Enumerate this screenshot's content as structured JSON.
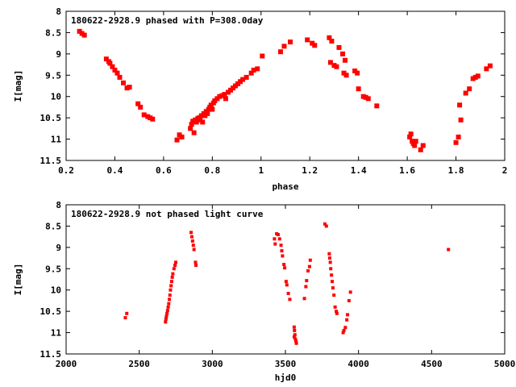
{
  "chart_data": [
    {
      "type": "scatter",
      "title": "180622-2928.9 phased with P=308.0day",
      "xlabel": "phase",
      "ylabel": "I[mag]",
      "xlim": [
        0.2,
        2.0
      ],
      "ylim": [
        8,
        11.5
      ],
      "y_inverted": true,
      "grid": false,
      "marker_color": "#ff0000",
      "x_ticks": [
        {
          "value": 0.2,
          "label": "0.2"
        },
        {
          "value": 0.4,
          "label": "0.4"
        },
        {
          "value": 0.6,
          "label": "0.6"
        },
        {
          "value": 0.8,
          "label": "0.8"
        },
        {
          "value": 1.0,
          "label": "1"
        },
        {
          "value": 1.2,
          "label": "1.2"
        },
        {
          "value": 1.4,
          "label": "1.4"
        },
        {
          "value": 1.6,
          "label": "1.6"
        },
        {
          "value": 1.8,
          "label": "1.8"
        },
        {
          "value": 2.0,
          "label": "2"
        }
      ],
      "y_ticks": [
        {
          "value": 8,
          "label": "8"
        },
        {
          "value": 8.5,
          "label": "8.5"
        },
        {
          "value": 9,
          "label": "9"
        },
        {
          "value": 9.5,
          "label": "9.5"
        },
        {
          "value": 10,
          "label": "10"
        },
        {
          "value": 10.5,
          "label": "10.5"
        },
        {
          "value": 11,
          "label": "11"
        },
        {
          "value": 11.5,
          "label": "11.5"
        }
      ],
      "series": [
        {
          "points": [
            [
              0.255,
              8.47
            ],
            [
              0.265,
              8.52
            ],
            [
              0.275,
              8.56
            ],
            [
              0.365,
              9.12
            ],
            [
              0.375,
              9.18
            ],
            [
              0.38,
              9.22
            ],
            [
              0.39,
              9.3
            ],
            [
              0.4,
              9.38
            ],
            [
              0.41,
              9.45
            ],
            [
              0.42,
              9.55
            ],
            [
              0.435,
              9.68
            ],
            [
              0.45,
              9.8
            ],
            [
              0.46,
              9.78
            ],
            [
              0.495,
              10.17
            ],
            [
              0.505,
              10.25
            ],
            [
              0.52,
              10.43
            ],
            [
              0.535,
              10.47
            ],
            [
              0.545,
              10.5
            ],
            [
              0.555,
              10.53
            ],
            [
              0.655,
              11.02
            ],
            [
              0.665,
              10.9
            ],
            [
              0.675,
              10.95
            ],
            [
              0.71,
              10.75
            ],
            [
              0.715,
              10.65
            ],
            [
              0.72,
              10.58
            ],
            [
              0.725,
              10.85
            ],
            [
              0.73,
              10.55
            ],
            [
              0.735,
              10.6
            ],
            [
              0.74,
              10.52
            ],
            [
              0.745,
              10.5
            ],
            [
              0.75,
              10.55
            ],
            [
              0.755,
              10.45
            ],
            [
              0.76,
              10.6
            ],
            [
              0.765,
              10.4
            ],
            [
              0.77,
              10.45
            ],
            [
              0.775,
              10.35
            ],
            [
              0.78,
              10.4
            ],
            [
              0.785,
              10.3
            ],
            [
              0.79,
              10.25
            ],
            [
              0.795,
              10.2
            ],
            [
              0.8,
              10.3
            ],
            [
              0.805,
              10.15
            ],
            [
              0.81,
              10.1
            ],
            [
              0.82,
              10.05
            ],
            [
              0.83,
              10.0
            ],
            [
              0.84,
              9.98
            ],
            [
              0.85,
              9.95
            ],
            [
              0.855,
              10.05
            ],
            [
              0.865,
              9.9
            ],
            [
              0.875,
              9.85
            ],
            [
              0.885,
              9.8
            ],
            [
              0.895,
              9.75
            ],
            [
              0.905,
              9.7
            ],
            [
              0.915,
              9.65
            ],
            [
              0.925,
              9.6
            ],
            [
              0.94,
              9.55
            ],
            [
              0.96,
              9.45
            ],
            [
              0.97,
              9.38
            ],
            [
              0.985,
              9.35
            ],
            [
              1.005,
              9.05
            ],
            [
              1.08,
              8.95
            ],
            [
              1.095,
              8.82
            ],
            [
              1.12,
              8.72
            ],
            [
              1.19,
              8.67
            ],
            [
              1.21,
              8.75
            ],
            [
              1.22,
              8.8
            ],
            [
              1.28,
              8.62
            ],
            [
              1.29,
              8.7
            ],
            [
              1.285,
              9.2
            ],
            [
              1.3,
              9.27
            ],
            [
              1.31,
              9.3
            ],
            [
              1.32,
              8.85
            ],
            [
              1.335,
              9.0
            ],
            [
              1.34,
              9.45
            ],
            [
              1.35,
              9.5
            ],
            [
              1.345,
              9.15
            ],
            [
              1.385,
              9.4
            ],
            [
              1.395,
              9.45
            ],
            [
              1.4,
              9.82
            ],
            [
              1.42,
              10.0
            ],
            [
              1.43,
              10.02
            ],
            [
              1.44,
              10.05
            ],
            [
              1.475,
              10.22
            ],
            [
              1.61,
              10.95
            ],
            [
              1.615,
              10.88
            ],
            [
              1.62,
              11.05
            ],
            [
              1.625,
              11.1
            ],
            [
              1.63,
              11.15
            ],
            [
              1.635,
              11.05
            ],
            [
              1.655,
              11.25
            ],
            [
              1.665,
              11.15
            ],
            [
              1.8,
              11.08
            ],
            [
              1.81,
              10.95
            ],
            [
              1.815,
              10.2
            ],
            [
              1.82,
              10.55
            ],
            [
              1.84,
              9.92
            ],
            [
              1.855,
              9.82
            ],
            [
              1.87,
              9.58
            ],
            [
              1.88,
              9.55
            ],
            [
              1.89,
              9.52
            ],
            [
              1.925,
              9.35
            ],
            [
              1.94,
              9.28
            ]
          ]
        }
      ]
    },
    {
      "type": "scatter",
      "title": "180622-2928.9 not phased light curve",
      "xlabel": "hjd0",
      "ylabel": "I[mag]",
      "xlim": [
        2000,
        5000
      ],
      "ylim": [
        8,
        11.5
      ],
      "y_inverted": true,
      "grid": false,
      "marker_color": "#ff0000",
      "x_ticks": [
        {
          "value": 2000,
          "label": "2000"
        },
        {
          "value": 2500,
          "label": "2500"
        },
        {
          "value": 3000,
          "label": "3000"
        },
        {
          "value": 3500,
          "label": "3500"
        },
        {
          "value": 4000,
          "label": "4000"
        },
        {
          "value": 4500,
          "label": "4500"
        },
        {
          "value": 5000,
          "label": "5000"
        }
      ],
      "y_ticks": [
        {
          "value": 8,
          "label": "8"
        },
        {
          "value": 8.5,
          "label": "8.5"
        },
        {
          "value": 9,
          "label": "9"
        },
        {
          "value": 9.5,
          "label": "9.5"
        },
        {
          "value": 10,
          "label": "10"
        },
        {
          "value": 10.5,
          "label": "10.5"
        },
        {
          "value": 11,
          "label": "11"
        },
        {
          "value": 11.5,
          "label": "11.5"
        }
      ],
      "series": [
        {
          "points": [
            [
              2405,
              10.65
            ],
            [
              2415,
              10.55
            ],
            [
              2680,
              10.75
            ],
            [
              2683,
              10.68
            ],
            [
              2686,
              10.62
            ],
            [
              2690,
              10.55
            ],
            [
              2694,
              10.48
            ],
            [
              2698,
              10.4
            ],
            [
              2702,
              10.32
            ],
            [
              2706,
              10.22
            ],
            [
              2710,
              10.12
            ],
            [
              2714,
              10.0
            ],
            [
              2718,
              9.9
            ],
            [
              2722,
              9.8
            ],
            [
              2726,
              9.7
            ],
            [
              2730,
              9.62
            ],
            [
              2738,
              9.5
            ],
            [
              2745,
              9.42
            ],
            [
              2750,
              9.35
            ],
            [
              2855,
              8.65
            ],
            [
              2860,
              8.75
            ],
            [
              2865,
              8.85
            ],
            [
              2870,
              8.95
            ],
            [
              2875,
              9.05
            ],
            [
              2885,
              9.35
            ],
            [
              2888,
              9.42
            ],
            [
              3425,
              8.8
            ],
            [
              3430,
              8.92
            ],
            [
              3440,
              8.68
            ],
            [
              3450,
              8.7
            ],
            [
              3460,
              8.8
            ],
            [
              3470,
              8.95
            ],
            [
              3475,
              9.08
            ],
            [
              3480,
              9.2
            ],
            [
              3490,
              9.4
            ],
            [
              3495,
              9.48
            ],
            [
              3505,
              9.8
            ],
            [
              3510,
              9.88
            ],
            [
              3520,
              10.08
            ],
            [
              3530,
              10.22
            ],
            [
              3560,
              10.87
            ],
            [
              3562,
              10.95
            ],
            [
              3565,
              11.05
            ],
            [
              3568,
              11.15
            ],
            [
              3572,
              11.2
            ],
            [
              3575,
              11.25
            ],
            [
              3560,
              11.1
            ],
            [
              3630,
              10.2
            ],
            [
              3640,
              9.92
            ],
            [
              3645,
              9.78
            ],
            [
              3655,
              9.55
            ],
            [
              3665,
              9.45
            ],
            [
              3670,
              9.3
            ],
            [
              3770,
              8.45
            ],
            [
              3780,
              8.5
            ],
            [
              3800,
              9.15
            ],
            [
              3803,
              9.25
            ],
            [
              3807,
              9.35
            ],
            [
              3810,
              9.5
            ],
            [
              3815,
              9.65
            ],
            [
              3820,
              9.8
            ],
            [
              3825,
              9.95
            ],
            [
              3832,
              10.12
            ],
            [
              3840,
              10.4
            ],
            [
              3848,
              10.5
            ],
            [
              3852,
              10.55
            ],
            [
              3895,
              11.0
            ],
            [
              3900,
              10.95
            ],
            [
              3910,
              10.88
            ],
            [
              3920,
              10.7
            ],
            [
              3925,
              10.58
            ],
            [
              3935,
              10.25
            ],
            [
              3945,
              10.05
            ],
            [
              4615,
              9.05
            ]
          ]
        }
      ]
    }
  ]
}
